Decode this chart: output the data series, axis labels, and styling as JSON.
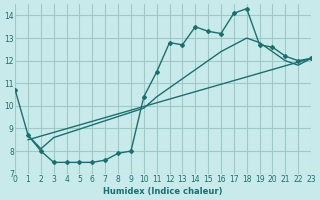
{
  "xlabel": "Humidex (Indice chaleur)",
  "ylabel": "",
  "bg_color": "#c8eaea",
  "grid_color": "#a0c8c8",
  "line_color": "#1a7070",
  "xlim": [
    0,
    23
  ],
  "ylim": [
    7,
    14.5
  ],
  "yticks": [
    7,
    8,
    9,
    10,
    11,
    12,
    13,
    14
  ],
  "xticks": [
    0,
    1,
    2,
    3,
    4,
    5,
    6,
    7,
    8,
    9,
    10,
    11,
    12,
    13,
    14,
    15,
    16,
    17,
    18,
    19,
    20,
    21,
    22,
    23
  ],
  "line1_x": [
    0,
    1,
    2,
    3,
    4,
    5,
    6,
    7,
    8,
    9,
    10,
    11,
    12,
    13,
    14,
    15,
    16,
    17,
    18,
    19,
    20,
    21,
    22,
    23
  ],
  "line1_y": [
    10.7,
    8.7,
    8.0,
    7.5,
    7.5,
    7.5,
    7.5,
    7.6,
    7.9,
    8.0,
    10.4,
    11.5,
    12.8,
    12.7,
    13.5,
    13.3,
    13.2,
    14.1,
    14.3,
    12.7,
    12.6,
    12.2,
    12.0,
    12.1
  ],
  "line2_x": [
    1,
    2,
    3,
    10,
    11,
    12,
    13,
    14,
    15,
    16,
    17,
    18,
    19,
    20,
    21,
    22,
    23
  ],
  "line2_y": [
    8.7,
    8.1,
    8.6,
    9.9,
    10.4,
    10.8,
    11.2,
    11.6,
    12.0,
    12.4,
    12.7,
    13.0,
    12.8,
    12.4,
    12.0,
    11.8,
    12.1
  ],
  "line3_x": [
    1,
    23
  ],
  "line3_y": [
    8.5,
    12.1
  ]
}
